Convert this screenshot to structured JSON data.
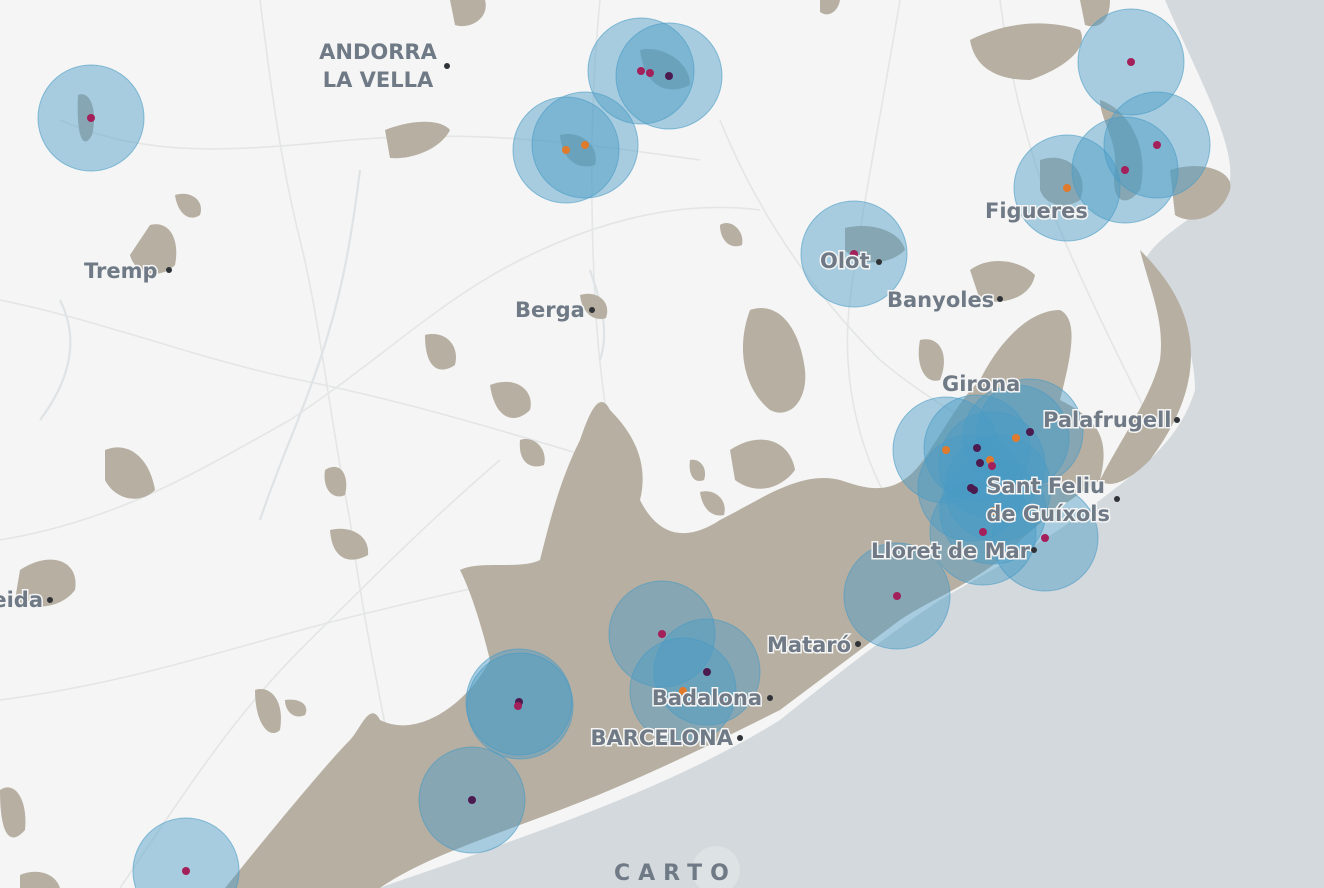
{
  "map": {
    "attribution": "CARTO",
    "cities": [
      {
        "name": "ANDORRA",
        "line2": "LA VELLA"
      },
      {
        "name": "Tremp"
      },
      {
        "name": "Berga"
      },
      {
        "name": "Olot"
      },
      {
        "name": "Banyoles"
      },
      {
        "name": "Figueres"
      },
      {
        "name": "Girona"
      },
      {
        "name": "Palafrugell"
      },
      {
        "name": "Sant Feliu",
        "line2": "de Guíxols"
      },
      {
        "name": "Lloret de Mar"
      },
      {
        "name": "Mataró"
      },
      {
        "name": "Badalona"
      },
      {
        "name": "BARCELONA"
      },
      {
        "name": "Lleida"
      }
    ],
    "colors": {
      "land": "#f4f5f4",
      "sea": "#d4d9dd",
      "urban": "#b7afa2",
      "buffer": "#4a9bc6",
      "point_crimson": "#a3205a",
      "point_dark": "#4b1b4f",
      "point_orange": "#e07b2d",
      "label": "#6f7a86"
    }
  }
}
